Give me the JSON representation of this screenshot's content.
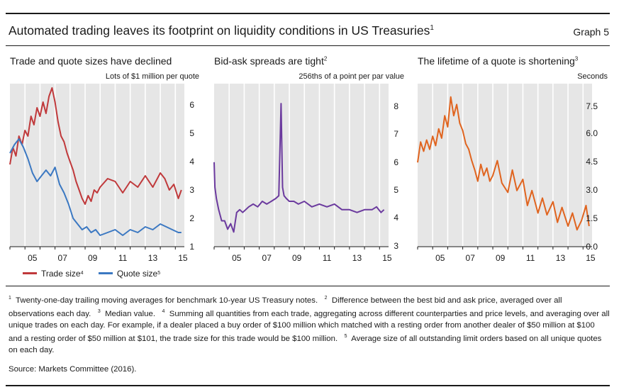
{
  "header": {
    "title": "Automated trading leaves its footprint on liquidity conditions in US Treasuries",
    "title_note": "1",
    "graph_label": "Graph 5"
  },
  "legend": {
    "trade_label": "Trade size",
    "trade_note": "4",
    "trade_color": "#c0393b",
    "quote_label": "Quote size",
    "quote_note": "5",
    "quote_color": "#3b78c2"
  },
  "footnotes": {
    "n1": "1",
    "t1": "Twenty-one-day trailing moving averages for benchmark 10-year US Treasury notes.",
    "n2": "2",
    "t2": "Difference between the best bid and ask price, averaged over all observations each day.",
    "n3": "3",
    "t3": "Median value.",
    "n4": "4",
    "t4": "Summing all quantities from each trade, aggregating across different counterparties and price levels, and averaging over all unique trades on each day. For example, if a dealer placed a buy order of $100 million which matched with a resting order from another dealer of $50 million at $100 and a resting order of $50 million at $101, the trade size for this trade would be $100 million.",
    "n5": "5",
    "t5": "Average size of all outstanding limit orders based on all unique quotes on each day."
  },
  "source": "Source: Markets Committee (2016).",
  "chart_data": [
    {
      "type": "line",
      "title": "Trade and quote sizes have declined",
      "subtitle": "Lots of $1 million per quote",
      "x_ticks": [
        "05",
        "07",
        "09",
        "11",
        "13",
        "15"
      ],
      "x_range": [
        2004,
        2015.6
      ],
      "y_ticks": [
        "1",
        "2",
        "3",
        "4",
        "5",
        "6"
      ],
      "ylim": [
        1,
        6.8
      ],
      "series": [
        {
          "name": "Trade size",
          "color": "#c0393b",
          "x": [
            2004.0,
            2004.2,
            2004.4,
            2004.6,
            2004.8,
            2005.0,
            2005.2,
            2005.4,
            2005.6,
            2005.8,
            2006.0,
            2006.2,
            2006.4,
            2006.6,
            2006.8,
            2007.0,
            2007.2,
            2007.4,
            2007.6,
            2007.8,
            2008.0,
            2008.2,
            2008.4,
            2008.6,
            2008.8,
            2009.0,
            2009.2,
            2009.4,
            2009.6,
            2009.8,
            2010.0,
            2010.5,
            2011.0,
            2011.5,
            2012.0,
            2012.5,
            2013.0,
            2013.5,
            2014.0,
            2014.3,
            2014.6,
            2014.9,
            2015.2,
            2015.4
          ],
          "y": [
            3.9,
            4.5,
            4.2,
            4.9,
            4.6,
            5.1,
            4.9,
            5.6,
            5.3,
            5.9,
            5.6,
            6.1,
            5.7,
            6.3,
            6.6,
            6.1,
            5.4,
            4.9,
            4.7,
            4.3,
            4.0,
            3.7,
            3.3,
            3.0,
            2.7,
            2.5,
            2.8,
            2.6,
            3.0,
            2.9,
            3.1,
            3.4,
            3.3,
            2.9,
            3.3,
            3.1,
            3.5,
            3.1,
            3.6,
            3.4,
            3.0,
            3.2,
            2.7,
            3.0
          ]
        },
        {
          "name": "Quote size",
          "color": "#3b78c2",
          "x": [
            2004.0,
            2004.3,
            2004.6,
            2004.9,
            2005.2,
            2005.5,
            2005.8,
            2006.1,
            2006.4,
            2006.7,
            2007.0,
            2007.3,
            2007.6,
            2007.9,
            2008.2,
            2008.5,
            2008.8,
            2009.1,
            2009.4,
            2009.7,
            2010.0,
            2010.5,
            2011.0,
            2011.5,
            2012.0,
            2012.5,
            2013.0,
            2013.5,
            2014.0,
            2014.4,
            2014.8,
            2015.2,
            2015.4
          ],
          "y": [
            4.3,
            4.6,
            4.8,
            4.5,
            4.1,
            3.6,
            3.3,
            3.5,
            3.7,
            3.5,
            3.8,
            3.2,
            2.9,
            2.5,
            2.0,
            1.8,
            1.6,
            1.7,
            1.5,
            1.6,
            1.4,
            1.5,
            1.6,
            1.4,
            1.6,
            1.5,
            1.7,
            1.6,
            1.8,
            1.7,
            1.6,
            1.5,
            1.5
          ]
        }
      ]
    },
    {
      "type": "line",
      "title": "Bid-ask spreads are tight",
      "title_note": "2",
      "subtitle": "256ths of a point per par value",
      "x_ticks": [
        "05",
        "07",
        "09",
        "11",
        "13",
        "15"
      ],
      "x_range": [
        2004,
        2015.6
      ],
      "y_ticks": [
        "3",
        "4",
        "5",
        "6",
        "7",
        "8"
      ],
      "ylim": [
        3,
        8.6
      ],
      "series": [
        {
          "name": "Bid-ask spread",
          "color": "#6b3a9e",
          "x": [
            2004.0,
            2004.05,
            2004.15,
            2004.3,
            2004.5,
            2004.7,
            2004.9,
            2005.1,
            2005.3,
            2005.5,
            2005.7,
            2005.9,
            2006.1,
            2006.3,
            2006.6,
            2006.9,
            2007.2,
            2007.5,
            2007.8,
            2008.1,
            2008.3,
            2008.45,
            2008.55,
            2008.65,
            2008.8,
            2009.0,
            2009.3,
            2009.6,
            2010.0,
            2010.5,
            2011.0,
            2011.5,
            2012.0,
            2012.5,
            2013.0,
            2013.5,
            2014.0,
            2014.5,
            2014.8,
            2015.1,
            2015.3
          ],
          "y": [
            6.0,
            5.1,
            4.7,
            4.3,
            3.9,
            3.9,
            3.6,
            3.8,
            3.5,
            4.2,
            4.3,
            4.2,
            4.3,
            4.4,
            4.5,
            4.4,
            4.6,
            4.5,
            4.6,
            4.7,
            4.8,
            8.1,
            5.1,
            4.8,
            4.7,
            4.6,
            4.6,
            4.5,
            4.6,
            4.4,
            4.5,
            4.4,
            4.5,
            4.3,
            4.3,
            4.2,
            4.3,
            4.3,
            4.4,
            4.2,
            4.3
          ]
        }
      ]
    },
    {
      "type": "line",
      "title": "The lifetime of a quote is shortening",
      "title_note": "3",
      "subtitle": "Seconds",
      "x_ticks": [
        "05",
        "07",
        "09",
        "11",
        "13",
        "15"
      ],
      "x_range": [
        2004,
        2015.6
      ],
      "y_ticks": [
        "0.0",
        "1.5",
        "3.0",
        "4.5",
        "6.0",
        "7.5"
      ],
      "ylim": [
        0,
        8.5
      ],
      "series": [
        {
          "name": "Quote lifetime",
          "color": "#e0641f",
          "x": [
            2004.0,
            2004.2,
            2004.4,
            2004.6,
            2004.8,
            2005.0,
            2005.2,
            2005.4,
            2005.6,
            2005.8,
            2006.0,
            2006.2,
            2006.4,
            2006.6,
            2006.8,
            2007.0,
            2007.2,
            2007.4,
            2007.6,
            2007.8,
            2008.0,
            2008.2,
            2008.4,
            2008.6,
            2008.8,
            2009.0,
            2009.3,
            2009.6,
            2010.0,
            2010.3,
            2010.6,
            2011.0,
            2011.3,
            2011.6,
            2012.0,
            2012.3,
            2012.6,
            2013.0,
            2013.3,
            2013.6,
            2014.0,
            2014.3,
            2014.6,
            2014.9,
            2015.2,
            2015.4
          ],
          "y": [
            4.5,
            5.6,
            5.1,
            5.7,
            5.2,
            5.9,
            5.4,
            6.3,
            5.8,
            7.0,
            6.4,
            8.0,
            7.0,
            7.6,
            6.6,
            6.2,
            5.5,
            5.2,
            4.6,
            4.1,
            3.5,
            4.4,
            3.8,
            4.2,
            3.5,
            3.8,
            4.6,
            3.4,
            2.9,
            4.1,
            3.0,
            3.6,
            2.2,
            3.0,
            1.8,
            2.6,
            1.7,
            2.4,
            1.3,
            2.1,
            1.1,
            1.8,
            0.9,
            1.4,
            2.2,
            1.1
          ]
        }
      ]
    }
  ]
}
